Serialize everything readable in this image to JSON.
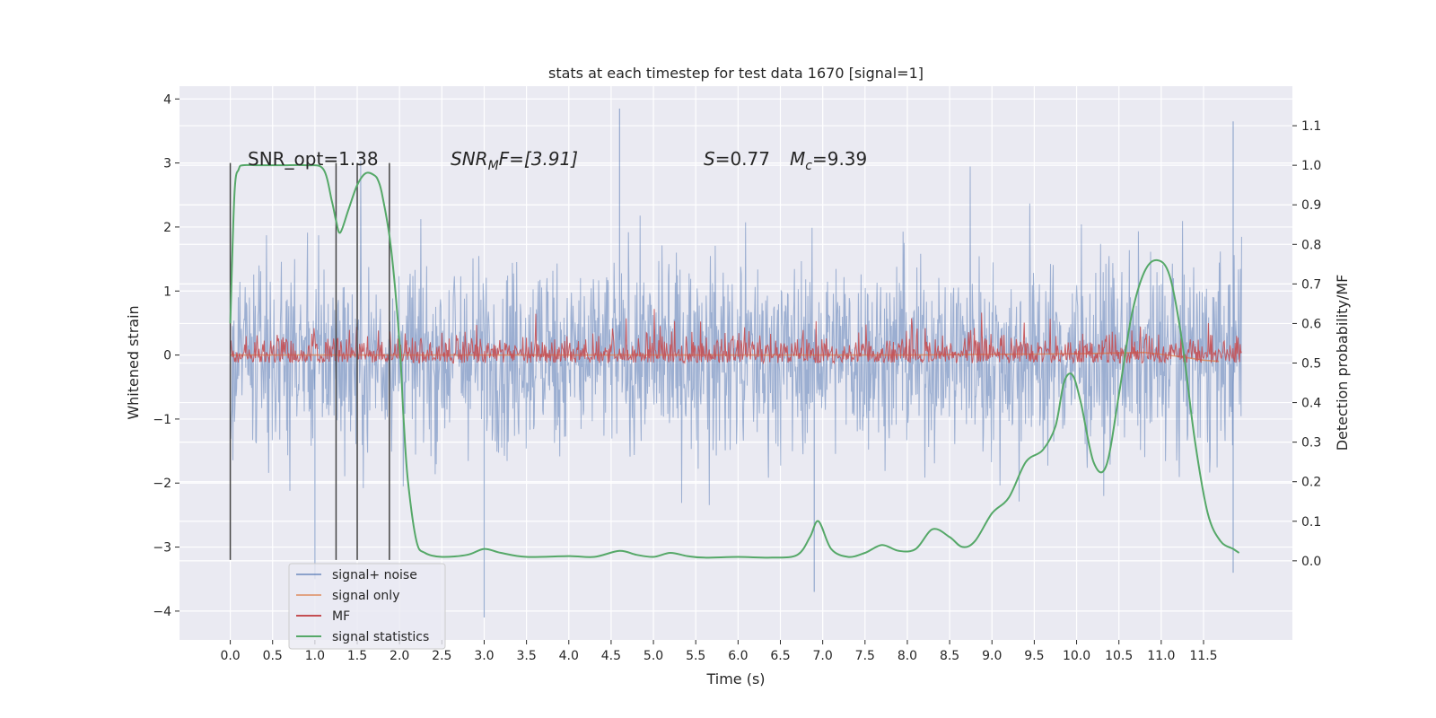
{
  "chart_data": {
    "type": "line",
    "title": "stats at each timestep for test data 1670 [signal=1]",
    "xlabel": "Time (s)",
    "ylabel": "Whitened strain",
    "y2label": "Detection probability/MF",
    "xlim": [
      -0.6,
      12.55
    ],
    "ylim": [
      -4.45,
      4.2
    ],
    "y2lim": [
      -0.2,
      1.2
    ],
    "xticks": [
      0.0,
      0.5,
      1.0,
      1.5,
      2.0,
      2.5,
      3.0,
      3.5,
      4.0,
      4.5,
      5.0,
      5.5,
      6.0,
      6.5,
      7.0,
      7.5,
      8.0,
      8.5,
      9.0,
      9.5,
      10.0,
      10.5,
      11.0,
      11.5
    ],
    "xtick_labels": [
      "0.0",
      "0.5",
      "1.0",
      "1.5",
      "2.0",
      "2.5",
      "3.0",
      "3.5",
      "4.0",
      "4.5",
      "5.0",
      "5.5",
      "6.0",
      "6.5",
      "7.0",
      "7.5",
      "8.0",
      "8.5",
      "9.0",
      "9.5",
      "10.0",
      "10.5",
      "11.0",
      "11.5"
    ],
    "yticks": [
      -4,
      -3,
      -2,
      -1,
      0,
      1,
      2,
      3,
      4
    ],
    "ytick_labels": [
      "−4",
      "−3",
      "−2",
      "−1",
      "0",
      "1",
      "2",
      "3",
      "4"
    ],
    "y2ticks": [
      0.0,
      0.1,
      0.2,
      0.3,
      0.4,
      0.5,
      0.6,
      0.7,
      0.8,
      0.9,
      1.0,
      1.1
    ],
    "y2tick_labels": [
      "0.0",
      "0.1",
      "0.2",
      "0.3",
      "0.4",
      "0.5",
      "0.6",
      "0.7",
      "0.8",
      "0.9",
      "1.0",
      "1.1"
    ],
    "grid": true,
    "legend_position": "lower-left",
    "colors": {
      "background": "#eaeaf2",
      "grid": "#ffffff",
      "signal_noise": "#4c72b0",
      "signal_only": "#dd8452",
      "mf": "#c44e52",
      "signal_statistics": "#55a868",
      "markers": "#444444"
    },
    "annotations": {
      "snr_opt": "SNR_opt=1.38",
      "snr_mf_prefix": "SNR",
      "snr_mf_sub": "M",
      "snr_mf_suffix": "F=[3.91]",
      "s_label": "S",
      "s_value": "=0.77",
      "mc_label": "M",
      "mc_sub": "c",
      "mc_value": "=9.39"
    },
    "markers_x": [
      0.0,
      1.25,
      1.5,
      1.88
    ],
    "markers_y_range": [
      -3.2,
      3.0
    ],
    "series": [
      {
        "name": "signal+ noise",
        "key": "signal_noise",
        "t_range": [
          0.0,
          11.95
        ],
        "envelope": "noise, roughly |y| up to 4 around 0",
        "notable_points": [
          [
            1.0,
            -3.5
          ],
          [
            3.0,
            -4.1
          ],
          [
            4.6,
            3.85
          ],
          [
            6.9,
            -3.7
          ],
          [
            11.85,
            3.65
          ],
          [
            11.85,
            -3.4
          ]
        ]
      },
      {
        "name": "signal only",
        "key": "signal_only",
        "x": [
          0.0,
          2.0,
          4.0,
          6.0,
          8.0,
          10.0,
          10.8,
          11.2,
          11.5,
          11.68
        ],
        "y": [
          0.0,
          0.0,
          0.0,
          0.0,
          0.0,
          0.02,
          0.04,
          -0.02,
          -0.08,
          -0.1
        ]
      },
      {
        "name": "MF",
        "key": "mf",
        "axis": "right",
        "t_range": [
          0.0,
          11.95
        ],
        "envelope": "noise between 0.5 and ~0.66 on right axis"
      },
      {
        "name": "signal statistics",
        "key": "signal_statistics",
        "axis": "right",
        "x": [
          0.0,
          0.05,
          0.1,
          0.15,
          0.3,
          0.6,
          0.9,
          1.1,
          1.2,
          1.25,
          1.3,
          1.4,
          1.5,
          1.6,
          1.7,
          1.75,
          1.8,
          1.9,
          2.0,
          2.05,
          2.1,
          2.2,
          2.3,
          2.5,
          2.8,
          3.0,
          3.2,
          3.5,
          4.0,
          4.3,
          4.6,
          4.8,
          5.0,
          5.2,
          5.4,
          5.6,
          6.0,
          6.4,
          6.7,
          6.85,
          6.95,
          7.1,
          7.3,
          7.5,
          7.7,
          7.9,
          8.1,
          8.3,
          8.5,
          8.65,
          8.8,
          9.0,
          9.2,
          9.4,
          9.6,
          9.75,
          9.85,
          9.95,
          10.05,
          10.2,
          10.35,
          10.5,
          10.65,
          10.8,
          10.95,
          11.1,
          11.25,
          11.4,
          11.55,
          11.7,
          11.85,
          11.92
        ],
        "y": [
          0.6,
          0.93,
          0.99,
          1.0,
          1.0,
          1.0,
          1.0,
          0.99,
          0.91,
          0.86,
          0.83,
          0.89,
          0.95,
          0.98,
          0.975,
          0.96,
          0.92,
          0.79,
          0.55,
          0.35,
          0.2,
          0.05,
          0.02,
          0.01,
          0.015,
          0.03,
          0.02,
          0.01,
          0.012,
          0.01,
          0.025,
          0.015,
          0.01,
          0.02,
          0.012,
          0.008,
          0.01,
          0.008,
          0.015,
          0.06,
          0.1,
          0.03,
          0.01,
          0.02,
          0.04,
          0.025,
          0.03,
          0.08,
          0.06,
          0.035,
          0.05,
          0.12,
          0.16,
          0.25,
          0.28,
          0.34,
          0.45,
          0.47,
          0.4,
          0.25,
          0.24,
          0.42,
          0.62,
          0.73,
          0.76,
          0.72,
          0.55,
          0.3,
          0.12,
          0.05,
          0.03,
          0.02
        ]
      }
    ]
  }
}
